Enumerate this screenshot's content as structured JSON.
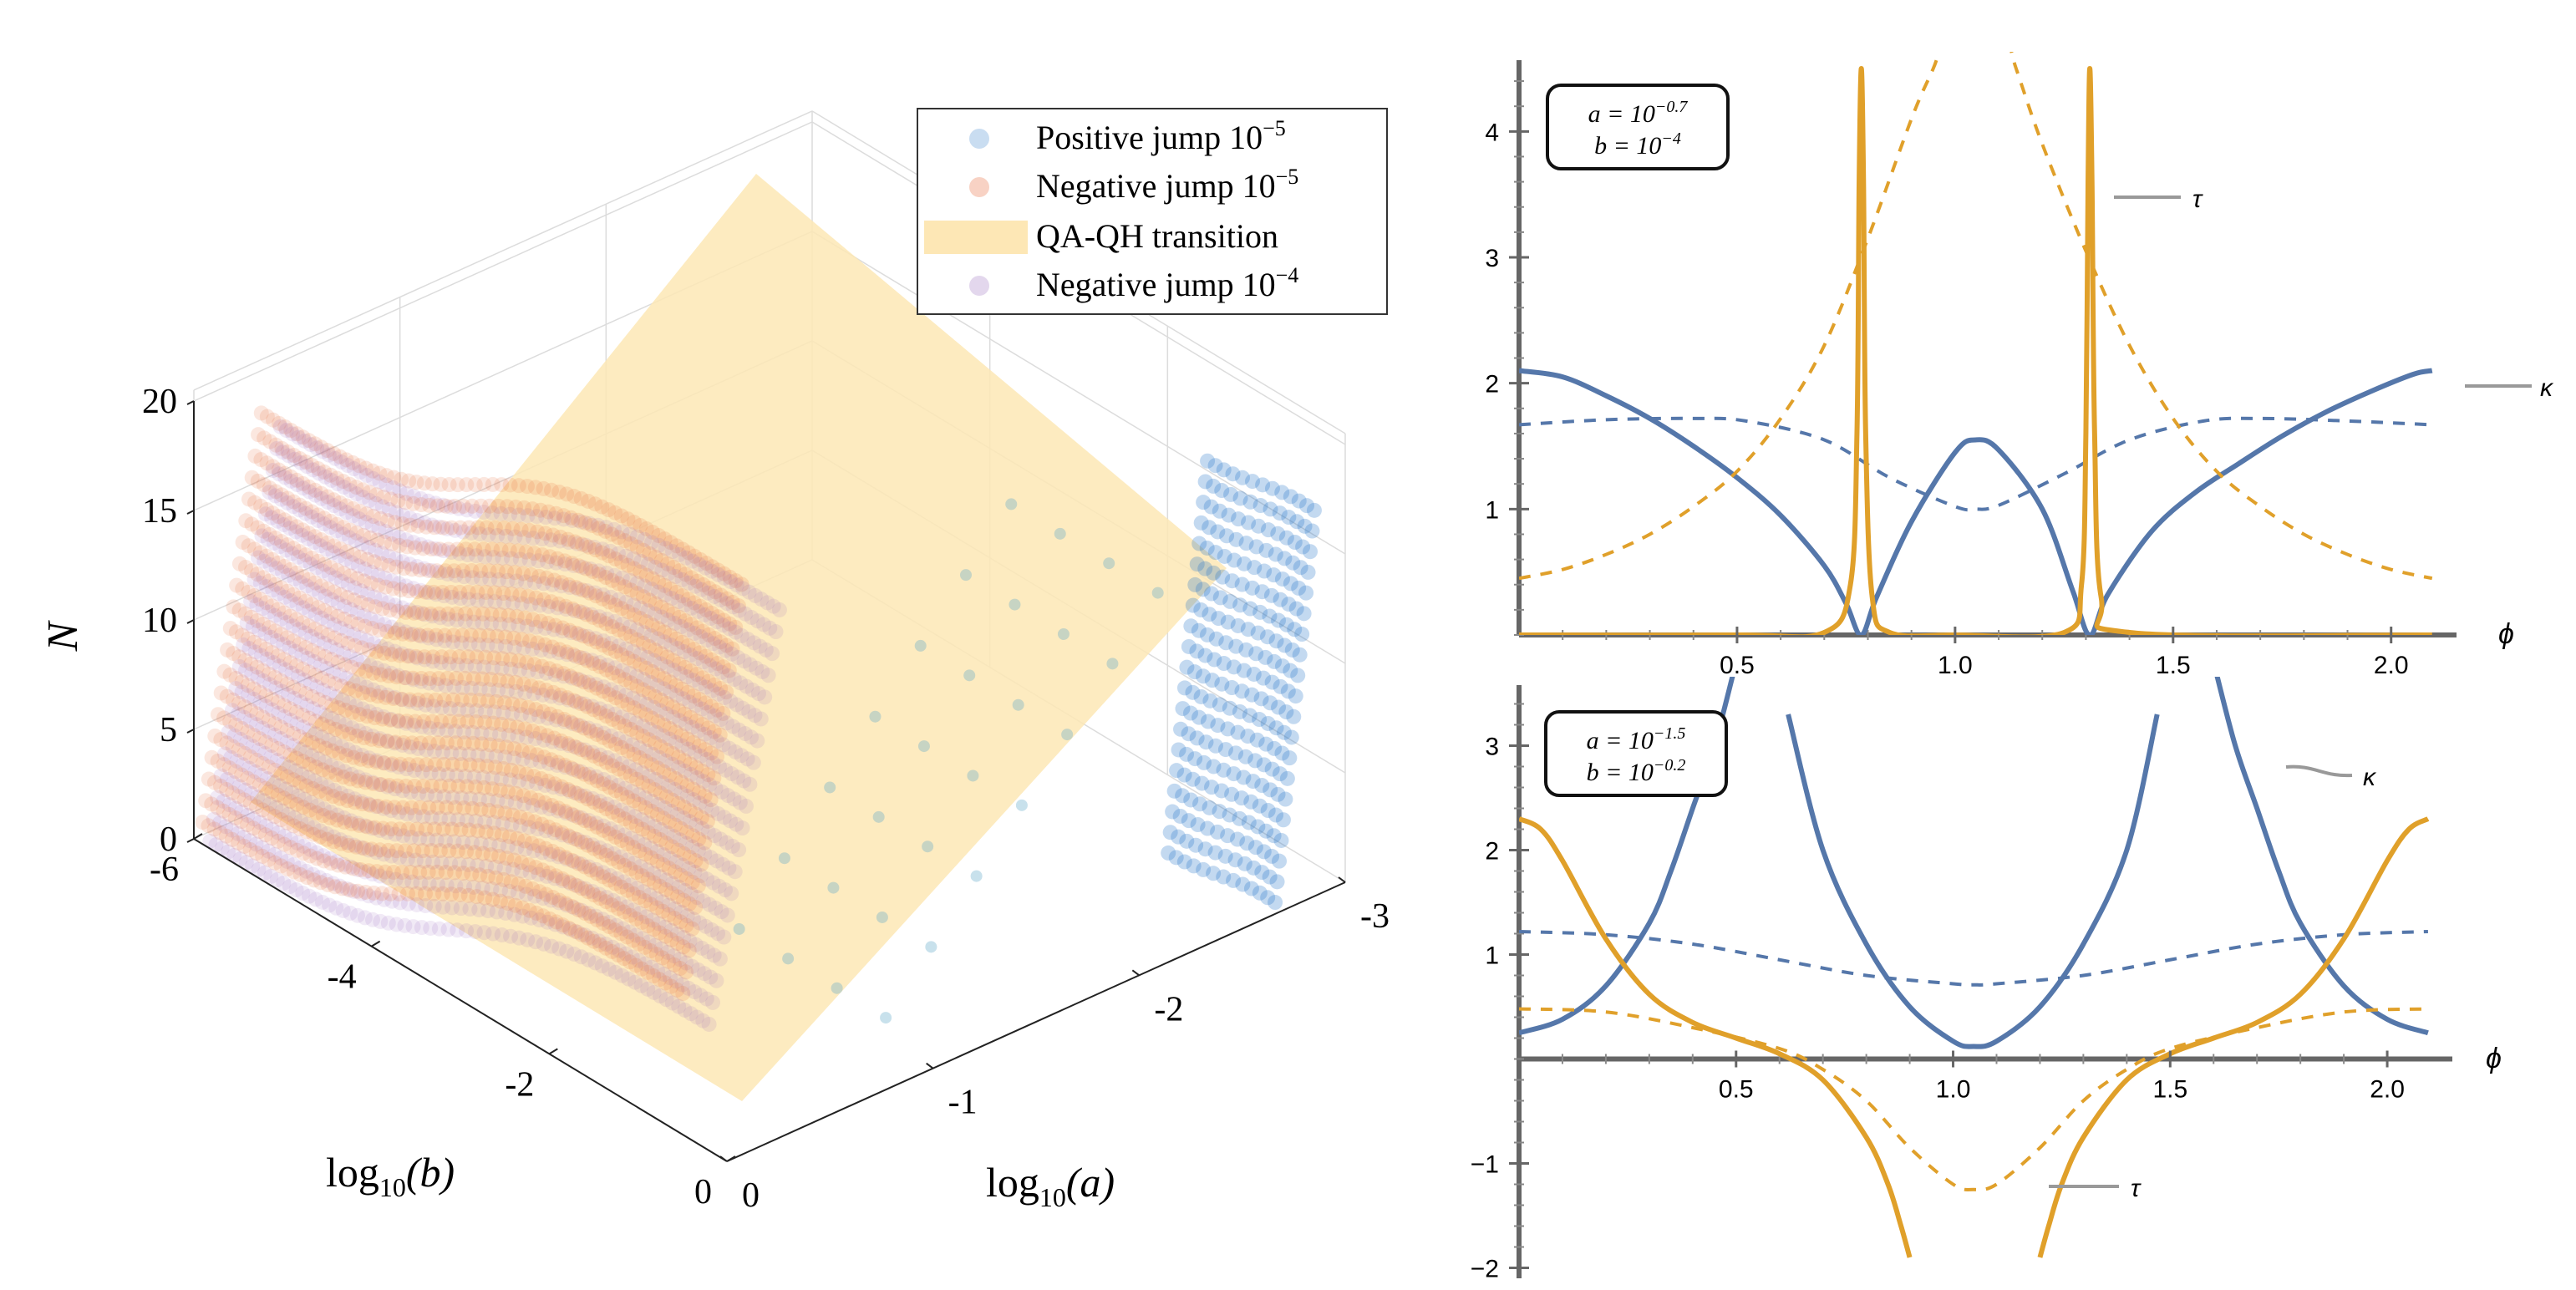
{
  "chart_data": [
    {
      "type": "scatter3d",
      "xlabel_prefix": "log",
      "xlabel_sub": "10",
      "xlabel_arg": "(a)",
      "ylabel_prefix": "log",
      "ylabel_sub": "10",
      "ylabel_arg": "(b)",
      "zlabel": "N",
      "a_ticks": [
        "0",
        "-1",
        "-2",
        "-3"
      ],
      "a_range": [
        0,
        -3
      ],
      "b_ticks": [
        "0",
        "-2",
        "-4",
        "-6"
      ],
      "b_range": [
        0,
        -6
      ],
      "z_ticks": [
        "0",
        "5",
        "10",
        "15",
        "20"
      ],
      "z_range": [
        0,
        20
      ],
      "legend": {
        "entries": [
          {
            "label": "Positive jump 10",
            "sup": "−5",
            "color": "#2878c8"
          },
          {
            "label": "Negative jump 10",
            "sup": "−5",
            "color": "#e86a3a"
          },
          {
            "label": "QA-QH transition",
            "sup": "",
            "color": "#fde7b5"
          },
          {
            "label": "Negative jump 10",
            "sup": "−4",
            "color": "#9060b8"
          }
        ]
      },
      "series": [
        {
          "name": "Negative jump 10^-5",
          "N_levels": [
            1,
            2,
            3,
            4,
            5,
            6,
            7,
            8,
            9,
            10,
            11,
            12,
            13,
            14,
            15,
            16,
            17,
            18,
            19,
            20
          ]
        },
        {
          "name": "Negative jump 10^-4",
          "N_levels": [
            1,
            2,
            3,
            4,
            5,
            6,
            7,
            8,
            9,
            10,
            11,
            12,
            13,
            14,
            15,
            16,
            17,
            18,
            19,
            20
          ]
        },
        {
          "name": "Positive jump 10^-5",
          "N_levels": [
            1,
            2,
            3,
            4,
            5,
            6,
            7,
            8,
            9,
            10,
            11,
            12,
            13,
            14,
            15,
            16,
            17,
            18,
            19,
            20
          ]
        }
      ]
    },
    {
      "type": "line",
      "annotation": {
        "a": "a = 10",
        "a_sup": "−0.7",
        "b": "b = 10",
        "b_sup": "−4"
      },
      "xlabel": "ϕ",
      "xlim": [
        0,
        2.15
      ],
      "ylim": [
        0,
        4.5
      ],
      "x_ticks": [
        "0.5",
        "1.0",
        "1.5",
        "2.0"
      ],
      "y_ticks": [
        "1",
        "2",
        "3",
        "4"
      ],
      "series_labels": {
        "tau": "τ",
        "kappa": "κ"
      },
      "series": [
        {
          "name": "kappa",
          "style": "solid",
          "color": "#5577aa",
          "x": [
            0,
            0.1,
            0.2,
            0.3,
            0.4,
            0.5,
            0.6,
            0.7,
            0.75,
            0.785,
            0.82,
            0.9,
            1.0,
            1.047,
            1.1,
            1.2,
            1.27,
            1.309,
            1.35,
            1.45,
            1.55,
            1.65,
            1.75,
            1.85,
            1.95,
            2.05,
            2.094
          ],
          "y": [
            2.1,
            2.05,
            1.9,
            1.72,
            1.5,
            1.25,
            0.95,
            0.55,
            0.25,
            0.0,
            0.3,
            0.9,
            1.45,
            1.55,
            1.47,
            1.0,
            0.35,
            0.0,
            0.32,
            0.82,
            1.13,
            1.36,
            1.58,
            1.77,
            1.93,
            2.07,
            2.1
          ]
        },
        {
          "name": "kappa-dashed",
          "style": "dashed",
          "color": "#5577aa",
          "x": [
            0,
            0.2,
            0.4,
            0.52,
            0.7,
            0.85,
            1.0,
            1.047,
            1.1,
            1.25,
            1.4,
            1.57,
            1.7,
            1.9,
            2.094
          ],
          "y": [
            1.67,
            1.71,
            1.72,
            1.7,
            1.55,
            1.25,
            1.02,
            1.0,
            1.03,
            1.28,
            1.55,
            1.7,
            1.72,
            1.7,
            1.67
          ]
        },
        {
          "name": "tau",
          "style": "solid",
          "color": "#e0a02a",
          "x": [
            0,
            0.5,
            0.7,
            0.76,
            0.775,
            0.78,
            0.785,
            0.79,
            0.795,
            0.81,
            0.85,
            1.0,
            1.25,
            1.29,
            1.3,
            1.305,
            1.309,
            1.314,
            1.32,
            1.335,
            1.4,
            2.094
          ],
          "y": [
            0,
            0.0,
            0.02,
            0.4,
            1.6,
            3.6,
            4.5,
            3.6,
            1.6,
            0.3,
            0.02,
            0.0,
            0.02,
            0.4,
            1.6,
            3.6,
            4.5,
            3.6,
            1.6,
            0.3,
            0.02,
            0.0
          ]
        },
        {
          "name": "tau-dashed",
          "style": "dashed",
          "color": "#e0a02a",
          "x": [
            0,
            0.1,
            0.2,
            0.3,
            0.4,
            0.5,
            0.6,
            0.7,
            0.8,
            0.9,
            0.95,
            1.0,
            1.1,
            1.14,
            1.2,
            1.3,
            1.4,
            1.5,
            1.6,
            1.7,
            1.8,
            1.9,
            2.0,
            2.094
          ],
          "y": [
            0.45,
            0.52,
            0.64,
            0.8,
            1.02,
            1.3,
            1.72,
            2.3,
            3.15,
            4.1,
            4.5,
            4.9,
            4.9,
            4.5,
            3.9,
            3.05,
            2.3,
            1.72,
            1.3,
            1.02,
            0.8,
            0.64,
            0.52,
            0.45
          ]
        }
      ]
    },
    {
      "type": "line",
      "annotation": {
        "a": "a = 10",
        "a_sup": "−1.5",
        "b": "b = 10",
        "b_sup": "−0.2"
      },
      "xlabel": "ϕ",
      "xlim": [
        0,
        2.15
      ],
      "ylim": [
        -2.1,
        3.5
      ],
      "x_ticks": [
        "0.5",
        "1.0",
        "1.5",
        "2.0"
      ],
      "y_ticks": [
        "−2",
        "−1",
        "1",
        "2",
        "3"
      ],
      "series_labels": {
        "tau": "τ",
        "kappa": "κ"
      },
      "series": [
        {
          "name": "kappa",
          "style": "solid",
          "color": "#5577aa",
          "x": [
            0,
            0.1,
            0.2,
            0.3,
            0.35,
            0.4,
            0.45,
            0.5
          ],
          "y": [
            0.25,
            0.38,
            0.7,
            1.3,
            1.8,
            2.4,
            3.0,
            3.8
          ]
        },
        {
          "name": "kappa-mid",
          "style": "solid",
          "color": "#5577aa",
          "x": [
            0.62,
            0.7,
            0.8,
            0.9,
            1.0,
            1.047,
            1.1,
            1.2,
            1.3,
            1.4,
            1.47
          ],
          "y": [
            3.3,
            2.0,
            1.1,
            0.5,
            0.17,
            0.12,
            0.17,
            0.5,
            1.1,
            2.0,
            3.3
          ]
        },
        {
          "name": "kappa-right",
          "style": "solid",
          "color": "#5577aa",
          "x": [
            1.6,
            1.65,
            1.7,
            1.75,
            1.8,
            1.9,
            2.0,
            2.094
          ],
          "y": [
            3.8,
            3.0,
            2.4,
            1.8,
            1.3,
            0.7,
            0.38,
            0.25
          ]
        },
        {
          "name": "kappa-dashed",
          "style": "dashed",
          "color": "#5577aa",
          "x": [
            0,
            0.2,
            0.4,
            0.6,
            0.8,
            1.0,
            1.047,
            1.1,
            1.3,
            1.5,
            1.7,
            1.9,
            2.094
          ],
          "y": [
            1.22,
            1.19,
            1.1,
            0.95,
            0.8,
            0.72,
            0.71,
            0.72,
            0.8,
            0.95,
            1.1,
            1.19,
            1.22
          ]
        },
        {
          "name": "tau-left",
          "style": "solid",
          "color": "#e0a02a",
          "x": [
            0,
            0.05,
            0.1,
            0.2,
            0.3,
            0.4,
            0.5,
            0.6,
            0.7,
            0.8,
            0.85,
            0.88,
            0.9
          ],
          "y": [
            2.3,
            2.2,
            1.9,
            1.15,
            0.62,
            0.35,
            0.2,
            0.05,
            -0.2,
            -0.75,
            -1.2,
            -1.6,
            -1.9
          ]
        },
        {
          "name": "tau-right",
          "style": "solid",
          "color": "#e0a02a",
          "x": [
            1.2,
            1.22,
            1.25,
            1.3,
            1.4,
            1.5,
            1.6,
            1.7,
            1.8,
            1.9,
            2.0,
            2.05,
            2.094
          ],
          "y": [
            -1.9,
            -1.6,
            -1.2,
            -0.75,
            -0.2,
            0.05,
            0.2,
            0.35,
            0.62,
            1.15,
            1.9,
            2.2,
            2.3
          ]
        },
        {
          "name": "tau-dashed",
          "style": "dashed",
          "color": "#e0a02a",
          "x": [
            0,
            0.2,
            0.4,
            0.6,
            0.7,
            0.8,
            0.9,
            1.0,
            1.047,
            1.1,
            1.2,
            1.3,
            1.4,
            1.5,
            1.7,
            1.9,
            2.094
          ],
          "y": [
            0.48,
            0.45,
            0.3,
            0.1,
            -0.1,
            -0.4,
            -0.85,
            -1.2,
            -1.25,
            -1.2,
            -0.85,
            -0.4,
            -0.1,
            0.1,
            0.3,
            0.45,
            0.48
          ]
        }
      ]
    }
  ]
}
